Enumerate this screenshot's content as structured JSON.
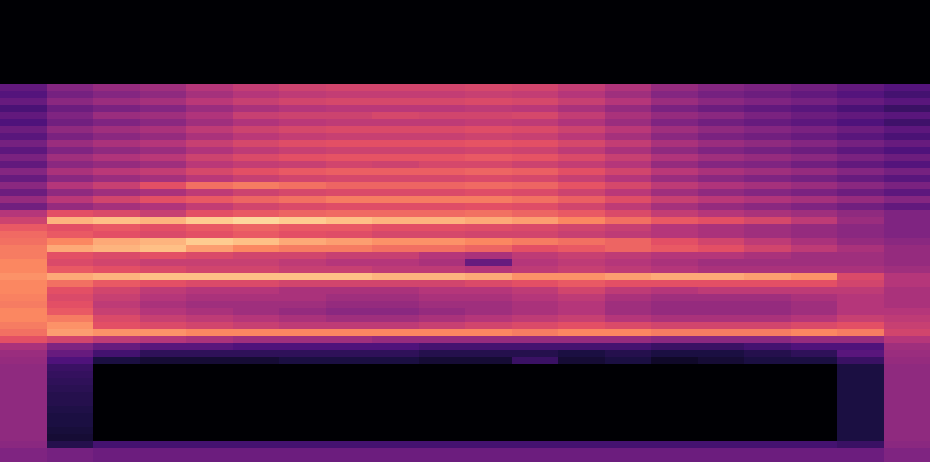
{
  "chart_data": {
    "type": "heatmap",
    "zlim": [
      -80,
      0
    ],
    "cells": [
      [
        -80,
        -80,
        -80,
        -80,
        -80,
        -80,
        -80,
        -80,
        -80,
        -80,
        -80,
        -80,
        -80,
        -80,
        -80,
        -80,
        -80,
        -80,
        -80,
        -80
      ],
      [
        -80,
        -80,
        -80,
        -80,
        -80,
        -80,
        -80,
        -80,
        -80,
        -80,
        -80,
        -80,
        -80,
        -80,
        -80,
        -80,
        -80,
        -80,
        -80,
        -80
      ],
      [
        -80,
        -80,
        -80,
        -80,
        -80,
        -80,
        -80,
        -80,
        -80,
        -80,
        -80,
        -80,
        -80,
        -80,
        -80,
        -80,
        -80,
        -80,
        -80,
        -80
      ],
      [
        -80,
        -80,
        -80,
        -80,
        -80,
        -80,
        -80,
        -80,
        -80,
        -80,
        -80,
        -80,
        -80,
        -80,
        -80,
        -80,
        -80,
        -80,
        -80,
        -80
      ],
      [
        -80,
        -80,
        -80,
        -80,
        -80,
        -80,
        -80,
        -80,
        -80,
        -80,
        -80,
        -80,
        -80,
        -80,
        -80,
        -80,
        -80,
        -80,
        -80,
        -80
      ],
      [
        -80,
        -80,
        -80,
        -80,
        -80,
        -80,
        -80,
        -80,
        -80,
        -80,
        -80,
        -80,
        -80,
        -80,
        -80,
        -80,
        -80,
        -80,
        -80,
        -80
      ],
      [
        -80,
        -80,
        -80,
        -80,
        -80,
        -80,
        -80,
        -80,
        -80,
        -80,
        -80,
        -80,
        -80,
        -80,
        -80,
        -80,
        -80,
        -80,
        -80,
        -80
      ],
      [
        -80,
        -80,
        -80,
        -80,
        -80,
        -80,
        -80,
        -80,
        -80,
        -80,
        -80,
        -80,
        -80,
        -80,
        -80,
        -80,
        -80,
        -80,
        -80,
        -80
      ],
      [
        -80,
        -80,
        -80,
        -80,
        -80,
        -80,
        -80,
        -80,
        -80,
        -80,
        -80,
        -80,
        -80,
        -80,
        -80,
        -80,
        -80,
        -80,
        -80,
        -80
      ],
      [
        -80,
        -80,
        -80,
        -80,
        -80,
        -80,
        -80,
        -80,
        -80,
        -80,
        -80,
        -80,
        -80,
        -80,
        -80,
        -80,
        -80,
        -80,
        -80,
        -80
      ],
      [
        -80,
        -80,
        -80,
        -80,
        -80,
        -80,
        -80,
        -80,
        -80,
        -80,
        -80,
        -80,
        -80,
        -80,
        -80,
        -80,
        -80,
        -80,
        -80,
        -80
      ],
      [
        -80,
        -80,
        -80,
        -80,
        -80,
        -80,
        -80,
        -80,
        -80,
        -80,
        -80,
        -80,
        -80,
        -80,
        -80,
        -80,
        -80,
        -80,
        -80,
        -80
      ],
      [
        -56,
        -49,
        -46,
        -44,
        -40,
        -37,
        -35,
        -34,
        -34,
        -34,
        -33,
        -34,
        -37,
        -41,
        -46,
        -49,
        -51,
        -53,
        -56,
        -59
      ],
      [
        -59,
        -52,
        -49,
        -47,
        -43,
        -40,
        -38,
        -37,
        -37,
        -37,
        -36,
        -37,
        -40,
        -44,
        -49,
        -52,
        -54,
        -56,
        -59,
        -62
      ],
      [
        -55,
        -48,
        -45,
        -43,
        -39,
        -36,
        -34,
        -33,
        -33,
        -33,
        -32,
        -33,
        -36,
        -40,
        -45,
        -48,
        -50,
        -52,
        -55,
        -58
      ],
      [
        -61,
        -54,
        -51,
        -49,
        -45,
        -42,
        -40,
        -39,
        -39,
        -39,
        -38,
        -39,
        -42,
        -46,
        -51,
        -54,
        -56,
        -58,
        -61,
        -64
      ],
      [
        -56,
        -50,
        -45,
        -44,
        -41,
        -36,
        -35,
        -35,
        -33,
        -34,
        -34,
        -33,
        -37,
        -42,
        -46,
        -48,
        -51,
        -54,
        -56,
        -58
      ],
      [
        -60,
        -53,
        -50,
        -48,
        -44,
        -41,
        -39,
        -38,
        -38,
        -38,
        -37,
        -38,
        -41,
        -45,
        -50,
        -53,
        -55,
        -57,
        -60,
        -63
      ],
      [
        -54,
        -47,
        -44,
        -42,
        -38,
        -35,
        -33,
        -32,
        -32,
        -32,
        -31,
        -32,
        -35,
        -39,
        -44,
        -47,
        -49,
        -51,
        -54,
        -57
      ],
      [
        -58,
        -51,
        -48,
        -46,
        -42,
        -39,
        -37,
        -36,
        -36,
        -36,
        -35,
        -36,
        -39,
        -43,
        -48,
        -51,
        -53,
        -55,
        -58,
        -61
      ],
      [
        -52,
        -45,
        -42,
        -40,
        -36,
        -33,
        -31,
        -30,
        -30,
        -30,
        -29,
        -30,
        -33,
        -37,
        -42,
        -45,
        -47,
        -49,
        -52,
        -55
      ],
      [
        -57,
        -50,
        -47,
        -45,
        -41,
        -38,
        -36,
        -35,
        -35,
        -35,
        -34,
        -35,
        -38,
        -42,
        -47,
        -50,
        -52,
        -54,
        -57,
        -60
      ],
      [
        -51,
        -44,
        -41,
        -39,
        -35,
        -32,
        -30,
        -29,
        -29,
        -29,
        -28,
        -29,
        -32,
        -36,
        -41,
        -44,
        -46,
        -48,
        -51,
        -54
      ],
      [
        -56,
        -48,
        -46,
        -44,
        -39,
        -37,
        -36,
        -34,
        -35,
        -33,
        -33,
        -35,
        -37,
        -40,
        -46,
        -49,
        -50,
        -53,
        -56,
        -59
      ],
      [
        -49,
        -42,
        -39,
        -37,
        -33,
        -30,
        -28,
        -27,
        -27,
        -27,
        -26,
        -27,
        -30,
        -34,
        -39,
        -42,
        -44,
        -46,
        -49,
        -52
      ],
      [
        -55,
        -48,
        -45,
        -43,
        -39,
        -36,
        -34,
        -33,
        -33,
        -33,
        -32,
        -33,
        -36,
        -40,
        -45,
        -48,
        -50,
        -52,
        -55,
        -58
      ],
      [
        -48,
        -40,
        -36,
        -30,
        -24,
        -22,
        -24,
        -26,
        -26,
        -26,
        -25,
        -26,
        -29,
        -33,
        -38,
        -41,
        -43,
        -45,
        -48,
        -51
      ],
      [
        -54,
        -47,
        -44,
        -42,
        -38,
        -35,
        -33,
        -32,
        -32,
        -32,
        -31,
        -32,
        -35,
        -39,
        -44,
        -47,
        -49,
        -51,
        -54,
        -57
      ],
      [
        -46,
        -39,
        -34,
        -30,
        -28,
        -26,
        -24,
        -22,
        -22,
        -22,
        -22,
        -24,
        -27,
        -31,
        -36,
        -39,
        -41,
        -43,
        -46,
        -49
      ],
      [
        -53,
        -46,
        -43,
        -41,
        -37,
        -34,
        -32,
        -31,
        -31,
        -31,
        -30,
        -31,
        -34,
        -38,
        -43,
        -46,
        -48,
        -50,
        -53,
        -56
      ],
      [
        -40,
        -30,
        -32,
        -36,
        -30,
        -28,
        -26,
        -25,
        -25,
        -25,
        -24,
        -26,
        -28,
        -32,
        -37,
        -40,
        -42,
        -44,
        -47,
        -50
      ],
      [
        -35,
        -12,
        -10,
        -12,
        -8,
        -6,
        -8,
        -10,
        -12,
        -12,
        -14,
        -16,
        -20,
        -24,
        -28,
        -30,
        -33,
        -38,
        -45,
        -50
      ],
      [
        -28,
        -30,
        -28,
        -30,
        -28,
        -26,
        -28,
        -28,
        -30,
        -30,
        -31,
        -32,
        -34,
        -36,
        -40,
        -42,
        -44,
        -46,
        -48,
        -50
      ],
      [
        -25,
        -28,
        -30,
        -32,
        -30,
        -28,
        -30,
        -31,
        -33,
        -33,
        -34,
        -34,
        -36,
        -38,
        -40,
        -42,
        -44,
        -46,
        -48,
        -50
      ],
      [
        -24,
        -20,
        -14,
        -12,
        -8,
        -10,
        -14,
        -16,
        -18,
        -18,
        -20,
        -22,
        -24,
        -26,
        -30,
        -34,
        -38,
        -42,
        -46,
        -48
      ],
      [
        -22,
        -14,
        -12,
        -10,
        -16,
        -20,
        -22,
        -22,
        -24,
        -24,
        -26,
        -30,
        -28,
        -26,
        -28,
        -30,
        -34,
        -38,
        -42,
        -46
      ],
      [
        -22,
        -30,
        -32,
        -30,
        -32,
        -34,
        -34,
        -36,
        -36,
        -40,
        -42,
        -38,
        -36,
        -38,
        -40,
        -40,
        -42,
        -44,
        -44,
        -46
      ],
      [
        -20,
        -32,
        -34,
        -36,
        -36,
        -36,
        -38,
        -40,
        -40,
        -42,
        -55,
        -40,
        -38,
        -40,
        -42,
        -44,
        -44,
        -44,
        -44,
        -46
      ],
      [
        -20,
        -28,
        -30,
        -32,
        -34,
        -34,
        -36,
        -36,
        -38,
        -38,
        -40,
        -38,
        -36,
        -38,
        -40,
        -42,
        -42,
        -42,
        -42,
        -44
      ],
      [
        -18,
        -14,
        -12,
        -10,
        -10,
        -10,
        -10,
        -10,
        -12,
        -12,
        -14,
        -18,
        -18,
        -16,
        -14,
        -14,
        -16,
        -18,
        -32,
        -40
      ],
      [
        -20,
        -24,
        -28,
        -30,
        -32,
        -32,
        -34,
        -34,
        -34,
        -34,
        -32,
        -30,
        -28,
        -30,
        -30,
        -30,
        -30,
        -30,
        -34,
        -40
      ],
      [
        -20,
        -30,
        -34,
        -38,
        -40,
        -40,
        -42,
        -42,
        -42,
        -40,
        -40,
        -38,
        -34,
        -38,
        -40,
        -38,
        -38,
        -38,
        -38,
        -42
      ],
      [
        -21,
        -32,
        -36,
        -40,
        -42,
        -42,
        -42,
        -44,
        -44,
        -42,
        -42,
        -40,
        -38,
        -42,
        -44,
        -44,
        -44,
        -42,
        -40,
        -42
      ],
      [
        -22,
        -30,
        -38,
        -42,
        -44,
        -44,
        -44,
        -46,
        -46,
        -44,
        -44,
        -42,
        -40,
        -44,
        -46,
        -46,
        -46,
        -44,
        -40,
        -42
      ],
      [
        -20,
        -28,
        -36,
        -40,
        -42,
        -44,
        -46,
        -48,
        -48,
        -46,
        -44,
        -42,
        -40,
        -44,
        -46,
        -46,
        -46,
        -44,
        -40,
        -40
      ],
      [
        -20,
        -22,
        -32,
        -36,
        -38,
        -40,
        -42,
        -44,
        -44,
        -42,
        -40,
        -38,
        -36,
        -40,
        -42,
        -42,
        -42,
        -40,
        -36,
        -38
      ],
      [
        -22,
        -18,
        -30,
        -32,
        -34,
        -36,
        -38,
        -38,
        -38,
        -36,
        -34,
        -32,
        -30,
        -32,
        -34,
        -34,
        -34,
        -32,
        -30,
        -36
      ],
      [
        -24,
        -16,
        -18,
        -18,
        -20,
        -20,
        -20,
        -20,
        -20,
        -20,
        -20,
        -22,
        -20,
        -20,
        -22,
        -22,
        -22,
        -20,
        -22,
        -34
      ],
      [
        -30,
        -34,
        -38,
        -40,
        -42,
        -44,
        -44,
        -44,
        -46,
        -46,
        -46,
        -46,
        -46,
        -46,
        -48,
        -48,
        -48,
        -46,
        -46,
        -40
      ],
      [
        -42,
        -50,
        -55,
        -58,
        -58,
        -60,
        -60,
        -60,
        -60,
        -62,
        -62,
        -62,
        -62,
        -62,
        -64,
        -64,
        -62,
        -60,
        -60,
        -44
      ],
      [
        -45,
        -55,
        -62,
        -66,
        -66,
        -66,
        -66,
        -66,
        -66,
        -68,
        -68,
        -68,
        -70,
        -68,
        -70,
        -70,
        -68,
        -66,
        -58,
        -45
      ],
      [
        -46,
        -60,
        -70,
        -72,
        -72,
        -72,
        -70,
        -70,
        -70,
        -72,
        -72,
        -64,
        -72,
        -70,
        -74,
        -72,
        -70,
        -70,
        -64,
        -46
      ],
      [
        -47,
        -64,
        -80,
        -80,
        -80,
        -80,
        -80,
        -80,
        -80,
        -80,
        -80,
        -80,
        -80,
        -80,
        -80,
        -80,
        -80,
        -80,
        -70,
        -47
      ],
      [
        -47,
        -65,
        -80,
        -80,
        -80,
        -80,
        -80,
        -80,
        -80,
        -80,
        -80,
        -80,
        -80,
        -80,
        -80,
        -80,
        -80,
        -80,
        -70,
        -47
      ],
      [
        -47,
        -66,
        -80,
        -80,
        -80,
        -80,
        -80,
        -80,
        -80,
        -80,
        -80,
        -80,
        -80,
        -80,
        -80,
        -80,
        -80,
        -80,
        -70,
        -47
      ],
      [
        -47,
        -67,
        -80,
        -80,
        -80,
        -80,
        -80,
        -80,
        -80,
        -80,
        -80,
        -80,
        -80,
        -80,
        -80,
        -80,
        -80,
        -80,
        -70,
        -47
      ],
      [
        -47,
        -68,
        -80,
        -80,
        -80,
        -80,
        -80,
        -80,
        -80,
        -80,
        -80,
        -80,
        -80,
        -80,
        -80,
        -80,
        -80,
        -80,
        -70,
        -47
      ],
      [
        -47,
        -68,
        -80,
        -80,
        -80,
        -80,
        -80,
        -80,
        -80,
        -80,
        -80,
        -80,
        -80,
        -80,
        -80,
        -80,
        -80,
        -80,
        -70,
        -47
      ],
      [
        -47,
        -69,
        -80,
        -80,
        -80,
        -80,
        -80,
        -80,
        -80,
        -80,
        -80,
        -80,
        -80,
        -80,
        -80,
        -80,
        -80,
        -80,
        -70,
        -47
      ],
      [
        -47,
        -70,
        -80,
        -80,
        -80,
        -80,
        -80,
        -80,
        -80,
        -80,
        -80,
        -80,
        -80,
        -80,
        -80,
        -80,
        -80,
        -80,
        -70,
        -47
      ],
      [
        -47,
        -70,
        -80,
        -80,
        -80,
        -80,
        -80,
        -80,
        -80,
        -80,
        -80,
        -80,
        -80,
        -80,
        -80,
        -80,
        -80,
        -80,
        -70,
        -47
      ],
      [
        -47,
        -71,
        -80,
        -80,
        -80,
        -80,
        -80,
        -80,
        -80,
        -80,
        -80,
        -80,
        -80,
        -80,
        -80,
        -80,
        -80,
        -80,
        -70,
        -47
      ],
      [
        -47,
        -72,
        -80,
        -80,
        -80,
        -80,
        -80,
        -80,
        -80,
        -80,
        -80,
        -80,
        -80,
        -80,
        -80,
        -80,
        -80,
        -80,
        -70,
        -47
      ],
      [
        -48,
        -68,
        -62,
        -62,
        -62,
        -62,
        -62,
        -62,
        -62,
        -62,
        -62,
        -62,
        -62,
        -62,
        -62,
        -62,
        -62,
        -62,
        -64,
        -48
      ],
      [
        -50,
        -52,
        -54,
        -54,
        -54,
        -54,
        -54,
        -54,
        -54,
        -54,
        -54,
        -54,
        -54,
        -54,
        -54,
        -54,
        -54,
        -54,
        -54,
        -50
      ],
      [
        -50,
        -52,
        -54,
        -54,
        -54,
        -54,
        -54,
        -54,
        -54,
        -54,
        -54,
        -54,
        -54,
        -54,
        -54,
        -54,
        -54,
        -54,
        -54,
        -50
      ]
    ]
  }
}
